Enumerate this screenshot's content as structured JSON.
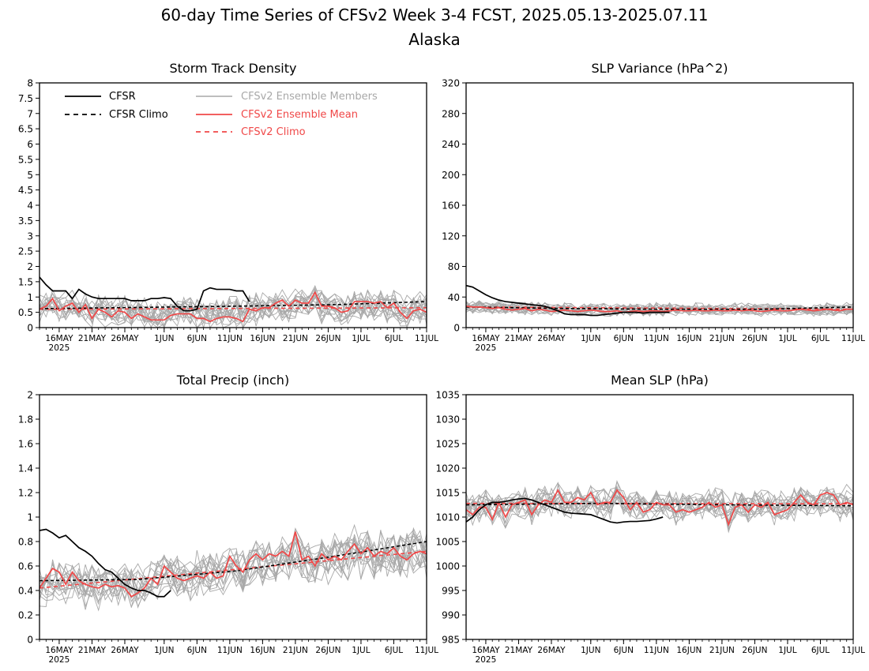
{
  "figure": {
    "title_line1": "60-day Time Series of CFSv2 Week 3-4 FCST, 2025.05.13-2025.07.11",
    "title_line2": "Alaska"
  },
  "x_axis": {
    "ticks": [
      {
        "day": 3,
        "label": "16MAY",
        "sub": "2025"
      },
      {
        "day": 8,
        "label": "21MAY"
      },
      {
        "day": 13,
        "label": "26MAY"
      },
      {
        "day": 19,
        "label": "1JUN"
      },
      {
        "day": 24,
        "label": "6JUN"
      },
      {
        "day": 29,
        "label": "11JUN"
      },
      {
        "day": 34,
        "label": "16JUN"
      },
      {
        "day": 39,
        "label": "21JUN"
      },
      {
        "day": 44,
        "label": "26JUN"
      },
      {
        "day": 49,
        "label": "1JUL"
      },
      {
        "day": 54,
        "label": "6JUL"
      },
      {
        "day": 59,
        "label": "11JUL"
      }
    ]
  },
  "legend": {
    "cfsr": "CFSR",
    "cfsr_climo": "CFSR Climo",
    "members": "CFSv2 Ensemble Members",
    "mean": "CFSv2 Ensemble Mean",
    "climo": "CFSv2 Climo"
  },
  "colors": {
    "cfsr": "#000000",
    "mean": "#f04848",
    "members": "#a8a8a8",
    "climo": "#f04848"
  },
  "chart_data": [
    {
      "type": "line",
      "title": "Storm Track Density",
      "ylim": [
        0,
        8
      ],
      "yticks": [
        0,
        0.5,
        1,
        1.5,
        2,
        2.5,
        3,
        3.5,
        4,
        4.5,
        5,
        5.5,
        6,
        6.5,
        7,
        7.5,
        8
      ],
      "cfsr": [
        1.65,
        1.4,
        1.2,
        1.2,
        1.2,
        0.95,
        1.25,
        1.1,
        1.0,
        0.95,
        0.95,
        0.95,
        0.95,
        0.95,
        0.88,
        0.88,
        0.88,
        0.95,
        0.95,
        0.98,
        0.95,
        0.7,
        0.55,
        0.55,
        0.6,
        1.2,
        1.3,
        1.25,
        1.25,
        1.25,
        1.2,
        1.2,
        0.85
      ],
      "cfsr_climo": {
        "x": [
          0,
          15,
          30,
          45,
          59
        ],
        "y": [
          0.62,
          0.66,
          0.7,
          0.75,
          0.85
        ]
      },
      "mean": [
        0.6,
        0.7,
        0.95,
        0.55,
        0.7,
        0.8,
        0.5,
        0.75,
        0.3,
        0.6,
        0.5,
        0.35,
        0.55,
        0.5,
        0.3,
        0.45,
        0.35,
        0.25,
        0.25,
        0.25,
        0.4,
        0.45,
        0.45,
        0.45,
        0.3,
        0.3,
        0.2,
        0.3,
        0.35,
        0.35,
        0.3,
        0.2,
        0.6,
        0.55,
        0.65,
        0.65,
        0.8,
        0.9,
        0.7,
        0.9,
        0.8,
        0.8,
        1.15,
        0.7,
        0.7,
        0.65,
        0.5,
        0.55,
        0.85,
        0.85,
        0.85,
        0.8,
        0.85,
        0.65,
        0.8,
        0.5,
        0.3,
        0.55,
        0.6,
        0.5
      ],
      "climo": {
        "x": [
          0,
          59
        ],
        "y": [
          0.6,
          0.65
        ]
      },
      "member_center": 0.7,
      "member_spread": 0.55
    },
    {
      "type": "line",
      "title": "SLP Variance (hPa^2)",
      "ylim": [
        0,
        320
      ],
      "yticks": [
        0,
        40,
        80,
        120,
        160,
        200,
        240,
        280,
        320
      ],
      "cfsr": [
        55,
        53,
        48,
        43,
        39,
        36,
        34,
        33,
        32,
        31,
        30,
        29,
        28,
        25,
        22,
        18,
        17,
        17,
        17,
        16,
        16,
        17,
        18,
        19,
        20,
        20,
        20,
        19,
        20,
        20,
        20,
        20
      ],
      "cfsr_climo": {
        "x": [
          0,
          15,
          30,
          45,
          59
        ],
        "y": [
          27,
          25,
          24,
          24,
          27
        ]
      },
      "mean": [
        28,
        27,
        27,
        26,
        25,
        26,
        24,
        23,
        24,
        25,
        22,
        24,
        23,
        21,
        22,
        23,
        22,
        21,
        22,
        23,
        22,
        21,
        21,
        22,
        20,
        21,
        22,
        21,
        22,
        22,
        21,
        22,
        23,
        22,
        22,
        23,
        22,
        22,
        23,
        22,
        22,
        23,
        22,
        23,
        22,
        21,
        22,
        23,
        22,
        22,
        23,
        24,
        23,
        22,
        23,
        24,
        23,
        22,
        24,
        24
      ],
      "climo": {
        "x": [
          0,
          59
        ],
        "y": [
          27,
          24
        ]
      },
      "member_center": 24,
      "member_spread": 9
    },
    {
      "type": "line",
      "title": "Total Precip (inch)",
      "ylim": [
        0,
        2
      ],
      "yticks": [
        0,
        0.2,
        0.4,
        0.6,
        0.8,
        1,
        1.2,
        1.4,
        1.6,
        1.8,
        2
      ],
      "cfsr": [
        0.89,
        0.9,
        0.87,
        0.83,
        0.85,
        0.8,
        0.75,
        0.72,
        0.68,
        0.62,
        0.57,
        0.55,
        0.5,
        0.45,
        0.42,
        0.4,
        0.4,
        0.38,
        0.35,
        0.35,
        0.4
      ],
      "cfsr_climo": {
        "x": [
          0,
          15,
          30,
          45,
          59
        ],
        "y": [
          0.48,
          0.49,
          0.56,
          0.68,
          0.8
        ]
      },
      "mean": [
        0.42,
        0.5,
        0.58,
        0.55,
        0.45,
        0.55,
        0.48,
        0.45,
        0.43,
        0.42,
        0.45,
        0.43,
        0.44,
        0.42,
        0.35,
        0.38,
        0.42,
        0.5,
        0.45,
        0.6,
        0.55,
        0.5,
        0.48,
        0.5,
        0.52,
        0.5,
        0.55,
        0.5,
        0.52,
        0.68,
        0.6,
        0.55,
        0.65,
        0.7,
        0.65,
        0.7,
        0.68,
        0.72,
        0.68,
        0.88,
        0.65,
        0.68,
        0.6,
        0.7,
        0.65,
        0.68,
        0.65,
        0.72,
        0.78,
        0.7,
        0.75,
        0.68,
        0.72,
        0.7,
        0.75,
        0.68,
        0.65,
        0.7,
        0.72,
        0.7
      ],
      "climo": {
        "x": [
          0,
          59
        ],
        "y": [
          0.42,
          0.72
        ]
      },
      "member_center": 0.55,
      "member_spread": 0.2
    },
    {
      "type": "line",
      "title": "Mean SLP (hPa)",
      "ylim": [
        985,
        1035
      ],
      "yticks": [
        985,
        990,
        995,
        1000,
        1005,
        1010,
        1015,
        1020,
        1025,
        1030,
        1035
      ],
      "cfsr": [
        1009,
        1010,
        1011.5,
        1012.5,
        1013,
        1013,
        1013.2,
        1013.5,
        1013.7,
        1013.8,
        1013.5,
        1013,
        1012.5,
        1012,
        1011.5,
        1011,
        1010.8,
        1010.7,
        1010.6,
        1010.5,
        1010,
        1009.5,
        1009,
        1008.8,
        1009,
        1009.1,
        1009.1,
        1009.2,
        1009.3,
        1009.6,
        1010
      ],
      "cfsr_climo": {
        "x": [
          0,
          20,
          40,
          59
        ],
        "y": [
          1012.5,
          1012.8,
          1012.5,
          1012.3
        ]
      },
      "mean": [
        1011.5,
        1010.5,
        1012,
        1012,
        1009.5,
        1013,
        1010,
        1012.5,
        1013,
        1013.5,
        1010.5,
        1012.5,
        1013.5,
        1013,
        1015.5,
        1013,
        1013,
        1014,
        1013.5,
        1015,
        1012.5,
        1013,
        1013,
        1015.5,
        1014,
        1011.5,
        1013,
        1011,
        1011.5,
        1013,
        1012.5,
        1012.5,
        1011,
        1011.5,
        1011,
        1011.5,
        1012,
        1013,
        1012,
        1012.5,
        1008.5,
        1012,
        1012.5,
        1011,
        1012.5,
        1012,
        1013,
        1010.5,
        1011,
        1011.5,
        1013,
        1014.5,
        1013,
        1012.5,
        1014.5,
        1015,
        1014.5,
        1012.5,
        1013,
        1012.5
      ],
      "climo": {
        "x": [
          0,
          59
        ],
        "y": [
          1012.8,
          1012.7
        ]
      },
      "member_center": 1012.5,
      "member_spread": 3.5
    }
  ]
}
